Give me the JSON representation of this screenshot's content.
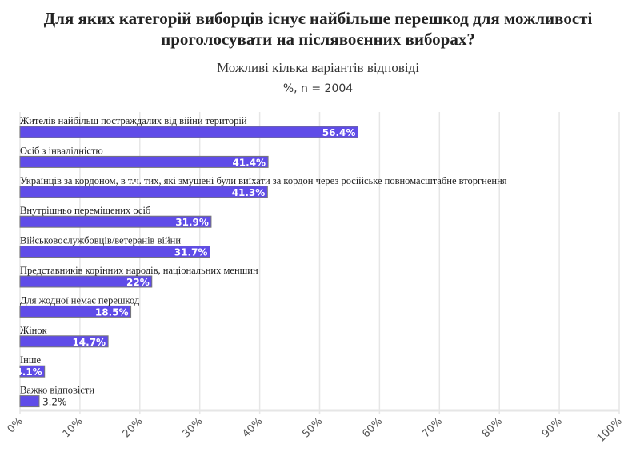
{
  "chart_data": {
    "type": "bar",
    "orientation": "horizontal",
    "title": "Для яких категорій виборців існує найбільше перешкод для можливості проголосувати на післявоєнних виборах?",
    "subtitle": "Можливі кілька варіантів відповіді",
    "subtitle2": "%, n = 2004",
    "categories": [
      "Жителів найбільш постраждалих від війни територій",
      "Осіб з інвалідністю",
      "Українців за кордоном, в т.ч. тих, які змушені були виїхати за кордон через російське повномасштабне вторгнення",
      "Внутрішньо переміщених осіб",
      "Військовослужбовців/ветеранів війни",
      "Представників корінних народів, національних меншин",
      "Для жодної немає перешкод",
      "Жінок",
      "Інше",
      "Важко відповісти"
    ],
    "values": [
      56.4,
      41.4,
      41.3,
      31.9,
      31.7,
      22,
      18.5,
      14.7,
      4.1,
      3.2
    ],
    "value_labels": [
      "56.4%",
      "41.4%",
      "41.3%",
      "31.9%",
      "31.7%",
      "22%",
      "18.5%",
      "14.7%",
      "4.1%",
      "3.2%"
    ],
    "xlim": [
      0,
      100
    ],
    "xticks": [
      "0%",
      "10%",
      "20%",
      "30%",
      "40%",
      "50%",
      "60%",
      "70%",
      "80%",
      "90%",
      "100%"
    ],
    "grid": true,
    "bar_color": "#5f4ce8"
  }
}
